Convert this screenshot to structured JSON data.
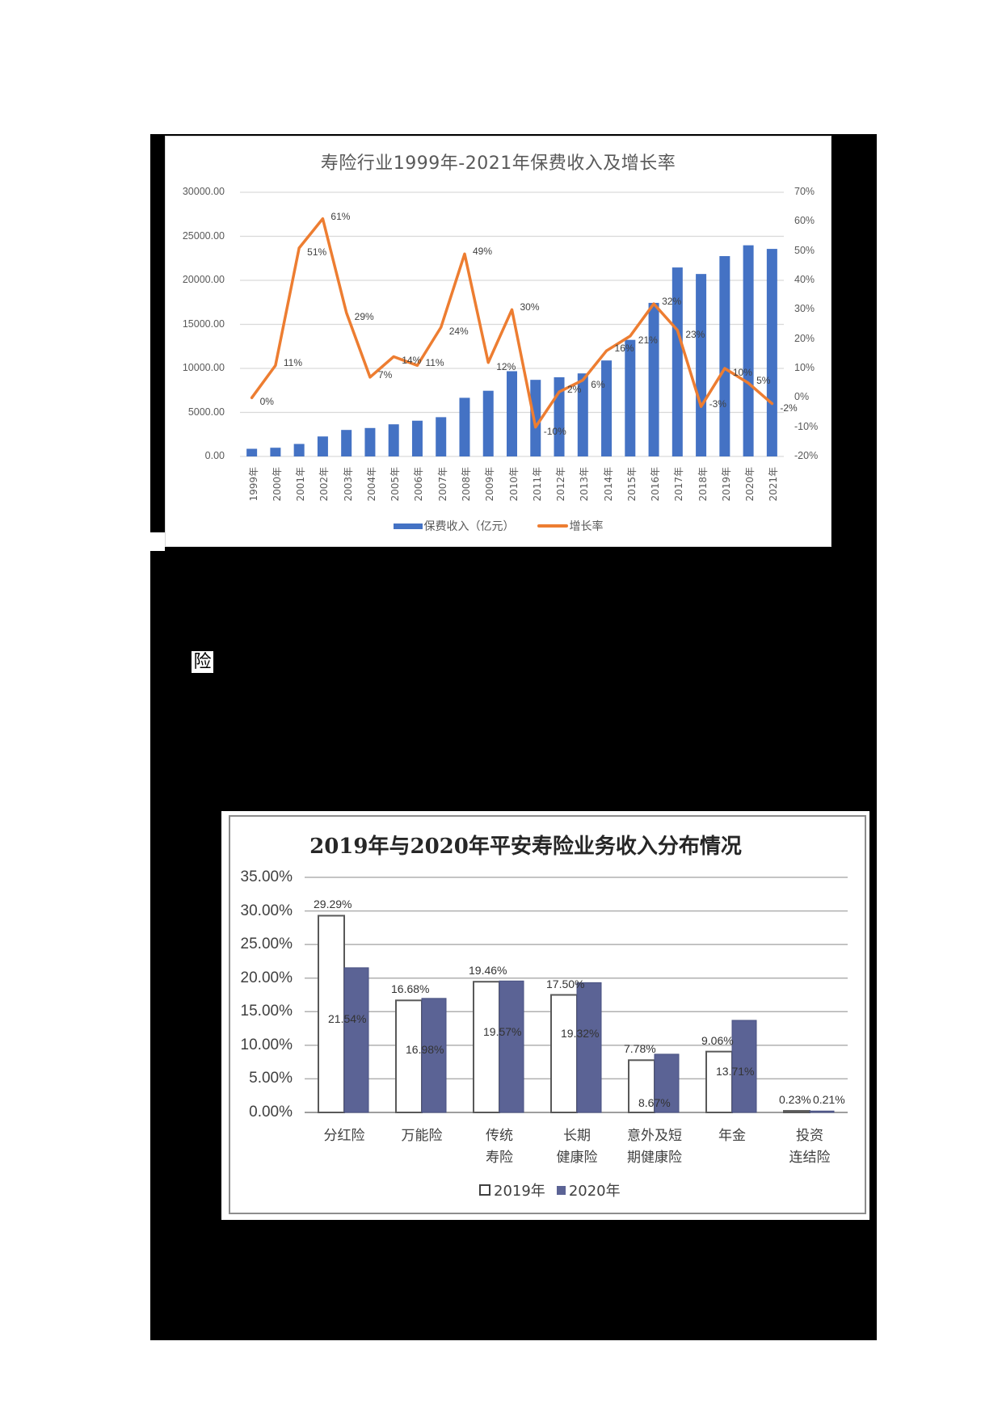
{
  "page": {
    "panel_color": "#000000",
    "fragment_text": "险"
  },
  "chart_data": [
    {
      "type": "bar+line",
      "title": "寿险行业1999年-2021年保费收入及增长率",
      "categories": [
        "1999年",
        "2000年",
        "2001年",
        "2002年",
        "2003年",
        "2004年",
        "2005年",
        "2006年",
        "2007年",
        "2008年",
        "2009年",
        "2010年",
        "2011年",
        "2012年",
        "2013年",
        "2014年",
        "2015年",
        "2016年",
        "2017年",
        "2018年",
        "2019年",
        "2020年",
        "2021年"
      ],
      "series": [
        {
          "name": "保费收入（亿元）",
          "type": "bar",
          "axis": "left",
          "color": "#4472c4",
          "values": [
            870,
            990,
            1420,
            2270,
            3010,
            3230,
            3650,
            4060,
            4460,
            6660,
            7460,
            9680,
            8700,
            8990,
            9430,
            10900,
            13240,
            17440,
            21460,
            20720,
            22750,
            23980,
            23570
          ]
        },
        {
          "name": "增长率",
          "type": "line",
          "axis": "right",
          "color": "#ed7d31",
          "values": [
            0,
            11,
            51,
            61,
            29,
            7,
            14,
            11,
            24,
            49,
            12,
            30,
            -10,
            2,
            6,
            16,
            21,
            32,
            23,
            -3,
            10,
            5,
            -2
          ],
          "labels": [
            "0%",
            "11%",
            "51%",
            "61%",
            "29%",
            "7%",
            "14%",
            "11%",
            "24%",
            "49%",
            "12%",
            "30%",
            "-10%",
            "2%",
            "6%",
            "16%",
            "21%",
            "32%",
            "23%",
            "-3%",
            "10%",
            "5%",
            "-2%"
          ]
        }
      ],
      "left_axis": {
        "ticks": [
          "30000.00",
          "25000.00",
          "20000.00",
          "15000.00",
          "10000.00",
          "5000.00",
          "0.00"
        ],
        "range": [
          0,
          30000
        ]
      },
      "right_axis": {
        "ticks": [
          "70%",
          "60%",
          "50%",
          "40%",
          "30%",
          "20%",
          "10%",
          "0%",
          "-10%",
          "-20%"
        ],
        "range": [
          -20,
          70
        ]
      },
      "legend": [
        "保费收入（亿元）",
        "增长率"
      ],
      "legend_position": "bottom",
      "grid": true
    },
    {
      "type": "bar",
      "title": "2019年与2020年平安寿险业务收入分布情况",
      "categories": [
        "分红险",
        "万能险",
        "传统寿险",
        "长期健康险",
        "意外及短期健康险",
        "年金",
        "投资连结险"
      ],
      "category_label_lines": [
        [
          "分红险"
        ],
        [
          "万能险"
        ],
        [
          "传统",
          "寿险"
        ],
        [
          "长期",
          "健康险"
        ],
        [
          "意外及短",
          "期健康险"
        ],
        [
          "年金"
        ],
        [
          "投资",
          "连结险"
        ]
      ],
      "series": [
        {
          "name": "2019年",
          "color": "#ffffff",
          "outline": "#595959",
          "values": [
            29.29,
            16.68,
            19.46,
            17.5,
            7.78,
            9.06,
            0.23
          ],
          "labels": [
            "29.29%",
            "16.68%",
            "19.46%",
            "17.50%",
            "7.78%",
            "9.06%",
            "0.23%"
          ]
        },
        {
          "name": "2020年",
          "color": "#5b6395",
          "values": [
            21.54,
            16.98,
            19.57,
            19.32,
            8.67,
            13.71,
            0.21
          ],
          "labels": [
            "21.54%",
            "16.98%",
            "19.57%",
            "19.32%",
            "8.67%",
            "13.71%",
            "0.21%"
          ]
        }
      ],
      "y_axis": {
        "ticks": [
          "35.00%",
          "30.00%",
          "25.00%",
          "20.00%",
          "15.00%",
          "10.00%",
          "5.00%",
          "0.00%"
        ],
        "range": [
          0,
          35
        ]
      },
      "legend": [
        "2019年",
        "2020年"
      ],
      "legend_position": "bottom",
      "grid": true
    }
  ]
}
